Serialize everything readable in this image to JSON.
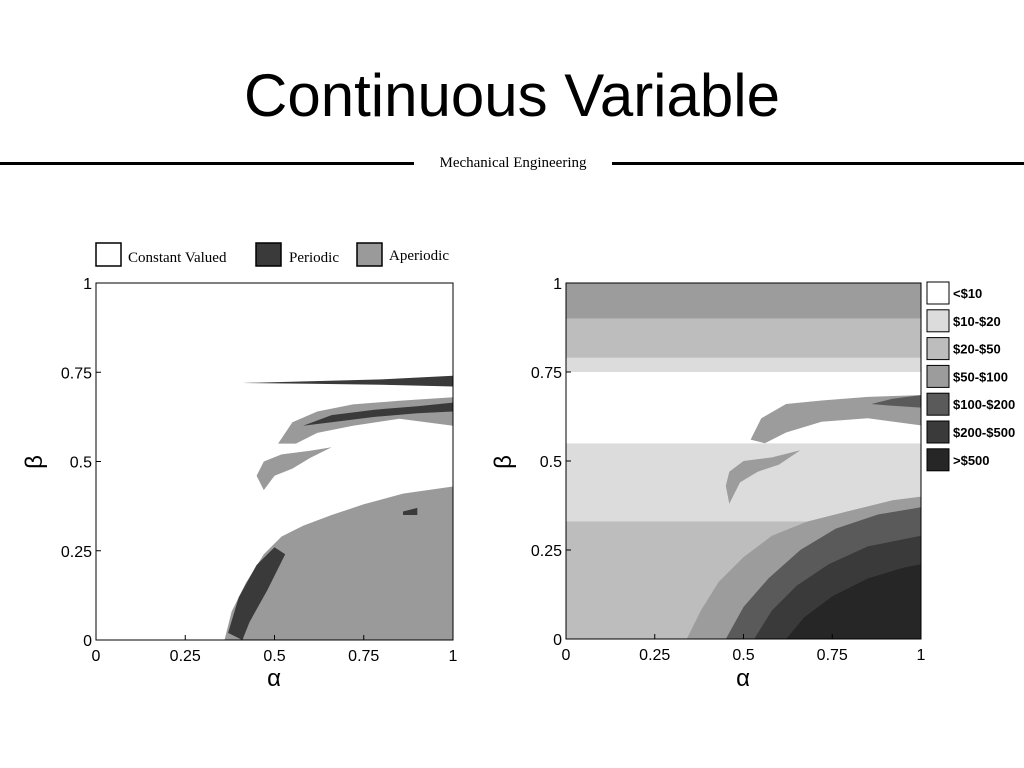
{
  "slide": {
    "title": "Continuous Variable",
    "subtitle": "Mechanical Engineering"
  },
  "chart_data": [
    {
      "type": "heatmap",
      "title": "",
      "xlabel": "α",
      "ylabel": "β",
      "xlim": [
        0,
        1
      ],
      "ylim": [
        0,
        1
      ],
      "xticks": [
        0,
        0.25,
        0.5,
        0.75,
        1
      ],
      "yticks": [
        0,
        0.25,
        0.5,
        0.75,
        1
      ],
      "xtick_labels": [
        "0",
        "0.25",
        "0.5",
        "0.75",
        "1"
      ],
      "ytick_labels": [
        "0",
        "0.25",
        "0.5",
        "0.75",
        "1"
      ],
      "legend_position": "top",
      "categories": [
        {
          "name": "Constant Valued",
          "color": "#ffffff"
        },
        {
          "name": "Periodic",
          "color": "#3a3a3a"
        },
        {
          "name": "Aperiodic",
          "color": "#9a9a9a"
        }
      ],
      "regions": [
        {
          "category": "Aperiodic",
          "polygon": [
            [
              0.36,
              0
            ],
            [
              0.38,
              0.08
            ],
            [
              0.42,
              0.16
            ],
            [
              0.47,
              0.24
            ],
            [
              0.52,
              0.29
            ],
            [
              0.58,
              0.32
            ],
            [
              0.66,
              0.35
            ],
            [
              0.75,
              0.38
            ],
            [
              0.86,
              0.41
            ],
            [
              1,
              0.43
            ],
            [
              1,
              0
            ]
          ]
        },
        {
          "category": "Periodic",
          "polygon": [
            [
              0.37,
              0.02
            ],
            [
              0.4,
              0.12
            ],
            [
              0.45,
              0.21
            ],
            [
              0.5,
              0.26
            ],
            [
              0.53,
              0.24
            ],
            [
              0.48,
              0.14
            ],
            [
              0.43,
              0.05
            ],
            [
              0.41,
              0
            ]
          ]
        },
        {
          "category": "Periodic",
          "polygon": [
            [
              0.86,
              0.36
            ],
            [
              0.9,
              0.37
            ],
            [
              0.9,
              0.35
            ],
            [
              0.86,
              0.35
            ]
          ]
        },
        {
          "category": "Aperiodic",
          "polygon": [
            [
              0.45,
              0.46
            ],
            [
              0.47,
              0.5
            ],
            [
              0.52,
              0.52
            ],
            [
              0.6,
              0.53
            ],
            [
              0.66,
              0.54
            ],
            [
              0.6,
              0.51
            ],
            [
              0.55,
              0.48
            ],
            [
              0.5,
              0.46
            ],
            [
              0.47,
              0.42
            ]
          ]
        },
        {
          "category": "Aperiodic",
          "polygon": [
            [
              0.51,
              0.55
            ],
            [
              0.55,
              0.61
            ],
            [
              0.62,
              0.64
            ],
            [
              0.72,
              0.66
            ],
            [
              0.85,
              0.67
            ],
            [
              1,
              0.68
            ],
            [
              1,
              0.6
            ],
            [
              0.85,
              0.62
            ],
            [
              0.72,
              0.6
            ],
            [
              0.62,
              0.58
            ],
            [
              0.56,
              0.55
            ]
          ]
        },
        {
          "category": "Periodic",
          "polygon": [
            [
              0.58,
              0.6
            ],
            [
              0.66,
              0.63
            ],
            [
              0.78,
              0.645
            ],
            [
              0.9,
              0.655
            ],
            [
              1,
              0.665
            ],
            [
              1,
              0.64
            ],
            [
              0.9,
              0.635
            ],
            [
              0.78,
              0.625
            ],
            [
              0.66,
              0.61
            ]
          ]
        },
        {
          "category": "Periodic",
          "polygon": [
            [
              0.41,
              0.72
            ],
            [
              0.6,
              0.725
            ],
            [
              0.8,
              0.73
            ],
            [
              1,
              0.74
            ],
            [
              1,
              0.71
            ],
            [
              0.8,
              0.715
            ],
            [
              0.6,
              0.718
            ]
          ]
        }
      ]
    },
    {
      "type": "heatmap",
      "title": "",
      "xlabel": "α",
      "ylabel": "β",
      "xlim": [
        0,
        1
      ],
      "ylim": [
        0,
        1
      ],
      "xticks": [
        0,
        0.25,
        0.5,
        0.75,
        1
      ],
      "yticks": [
        0,
        0.25,
        0.5,
        0.75,
        1
      ],
      "xtick_labels": [
        "0",
        "0.25",
        "0.5",
        "0.75",
        "1"
      ],
      "ytick_labels": [
        "0",
        "0.25",
        "0.5",
        "0.75",
        "1"
      ],
      "legend_position": "right",
      "categories": [
        {
          "name": "<$10",
          "color": "#ffffff"
        },
        {
          "name": "$10-$20",
          "color": "#dcdcdc"
        },
        {
          "name": "$20-$50",
          "color": "#bdbdbd"
        },
        {
          "name": "$50-$100",
          "color": "#9c9c9c"
        },
        {
          "name": "$100-$200",
          "color": "#5a5a5a"
        },
        {
          "name": "$200-$500",
          "color": "#3a3a3a"
        },
        {
          "name": ">$500",
          "color": "#262626"
        }
      ],
      "regions": [
        {
          "category": "$20-$50",
          "polygon": [
            [
              0,
              0
            ],
            [
              1,
              0
            ],
            [
              1,
              0.33
            ],
            [
              0,
              0.33
            ]
          ]
        },
        {
          "category": "$10-$20",
          "polygon": [
            [
              0,
              0.33
            ],
            [
              1,
              0.33
            ],
            [
              1,
              0.55
            ],
            [
              0,
              0.55
            ]
          ]
        },
        {
          "category": "<$10",
          "polygon": [
            [
              0,
              0.55
            ],
            [
              1,
              0.55
            ],
            [
              1,
              0.75
            ],
            [
              0,
              0.75
            ]
          ]
        },
        {
          "category": "$10-$20",
          "polygon": [
            [
              0,
              0.75
            ],
            [
              1,
              0.75
            ],
            [
              1,
              0.79
            ],
            [
              0,
              0.79
            ]
          ]
        },
        {
          "category": "$20-$50",
          "polygon": [
            [
              0,
              0.79
            ],
            [
              1,
              0.79
            ],
            [
              1,
              0.9
            ],
            [
              0,
              0.9
            ]
          ]
        },
        {
          "category": "$50-$100",
          "polygon": [
            [
              0,
              0.9
            ],
            [
              1,
              0.9
            ],
            [
              1,
              1
            ],
            [
              0,
              1
            ]
          ]
        },
        {
          "category": "$50-$100",
          "polygon": [
            [
              0.34,
              0
            ],
            [
              0.38,
              0.08
            ],
            [
              0.43,
              0.16
            ],
            [
              0.5,
              0.23
            ],
            [
              0.58,
              0.29
            ],
            [
              0.68,
              0.33
            ],
            [
              0.8,
              0.36
            ],
            [
              0.92,
              0.39
            ],
            [
              1,
              0.4
            ],
            [
              1,
              0
            ]
          ]
        },
        {
          "category": "$100-$200",
          "polygon": [
            [
              0.45,
              0
            ],
            [
              0.5,
              0.09
            ],
            [
              0.57,
              0.17
            ],
            [
              0.66,
              0.25
            ],
            [
              0.76,
              0.31
            ],
            [
              0.88,
              0.35
            ],
            [
              1,
              0.37
            ],
            [
              1,
              0
            ]
          ]
        },
        {
          "category": "$200-$500",
          "polygon": [
            [
              0.53,
              0
            ],
            [
              0.58,
              0.08
            ],
            [
              0.65,
              0.15
            ],
            [
              0.74,
              0.21
            ],
            [
              0.85,
              0.26
            ],
            [
              1,
              0.29
            ],
            [
              1,
              0
            ]
          ]
        },
        {
          "category": ">$500",
          "polygon": [
            [
              0.62,
              0
            ],
            [
              0.67,
              0.06
            ],
            [
              0.75,
              0.12
            ],
            [
              0.85,
              0.17
            ],
            [
              0.95,
              0.2
            ],
            [
              1,
              0.21
            ],
            [
              1,
              0
            ]
          ]
        },
        {
          "category": "$50-$100",
          "polygon": [
            [
              0.45,
              0.43
            ],
            [
              0.46,
              0.47
            ],
            [
              0.5,
              0.5
            ],
            [
              0.58,
              0.51
            ],
            [
              0.66,
              0.53
            ],
            [
              0.6,
              0.49
            ],
            [
              0.54,
              0.47
            ],
            [
              0.49,
              0.44
            ],
            [
              0.46,
              0.38
            ]
          ]
        },
        {
          "category": "$50-$100",
          "polygon": [
            [
              0.52,
              0.56
            ],
            [
              0.55,
              0.62
            ],
            [
              0.62,
              0.66
            ],
            [
              0.72,
              0.67
            ],
            [
              0.85,
              0.68
            ],
            [
              1,
              0.685
            ],
            [
              1,
              0.6
            ],
            [
              0.85,
              0.62
            ],
            [
              0.72,
              0.61
            ],
            [
              0.62,
              0.58
            ],
            [
              0.56,
              0.55
            ]
          ]
        },
        {
          "category": "$100-$200",
          "polygon": [
            [
              0.86,
              0.66
            ],
            [
              0.92,
              0.675
            ],
            [
              1,
              0.685
            ],
            [
              1,
              0.65
            ],
            [
              0.92,
              0.655
            ]
          ]
        }
      ]
    }
  ]
}
